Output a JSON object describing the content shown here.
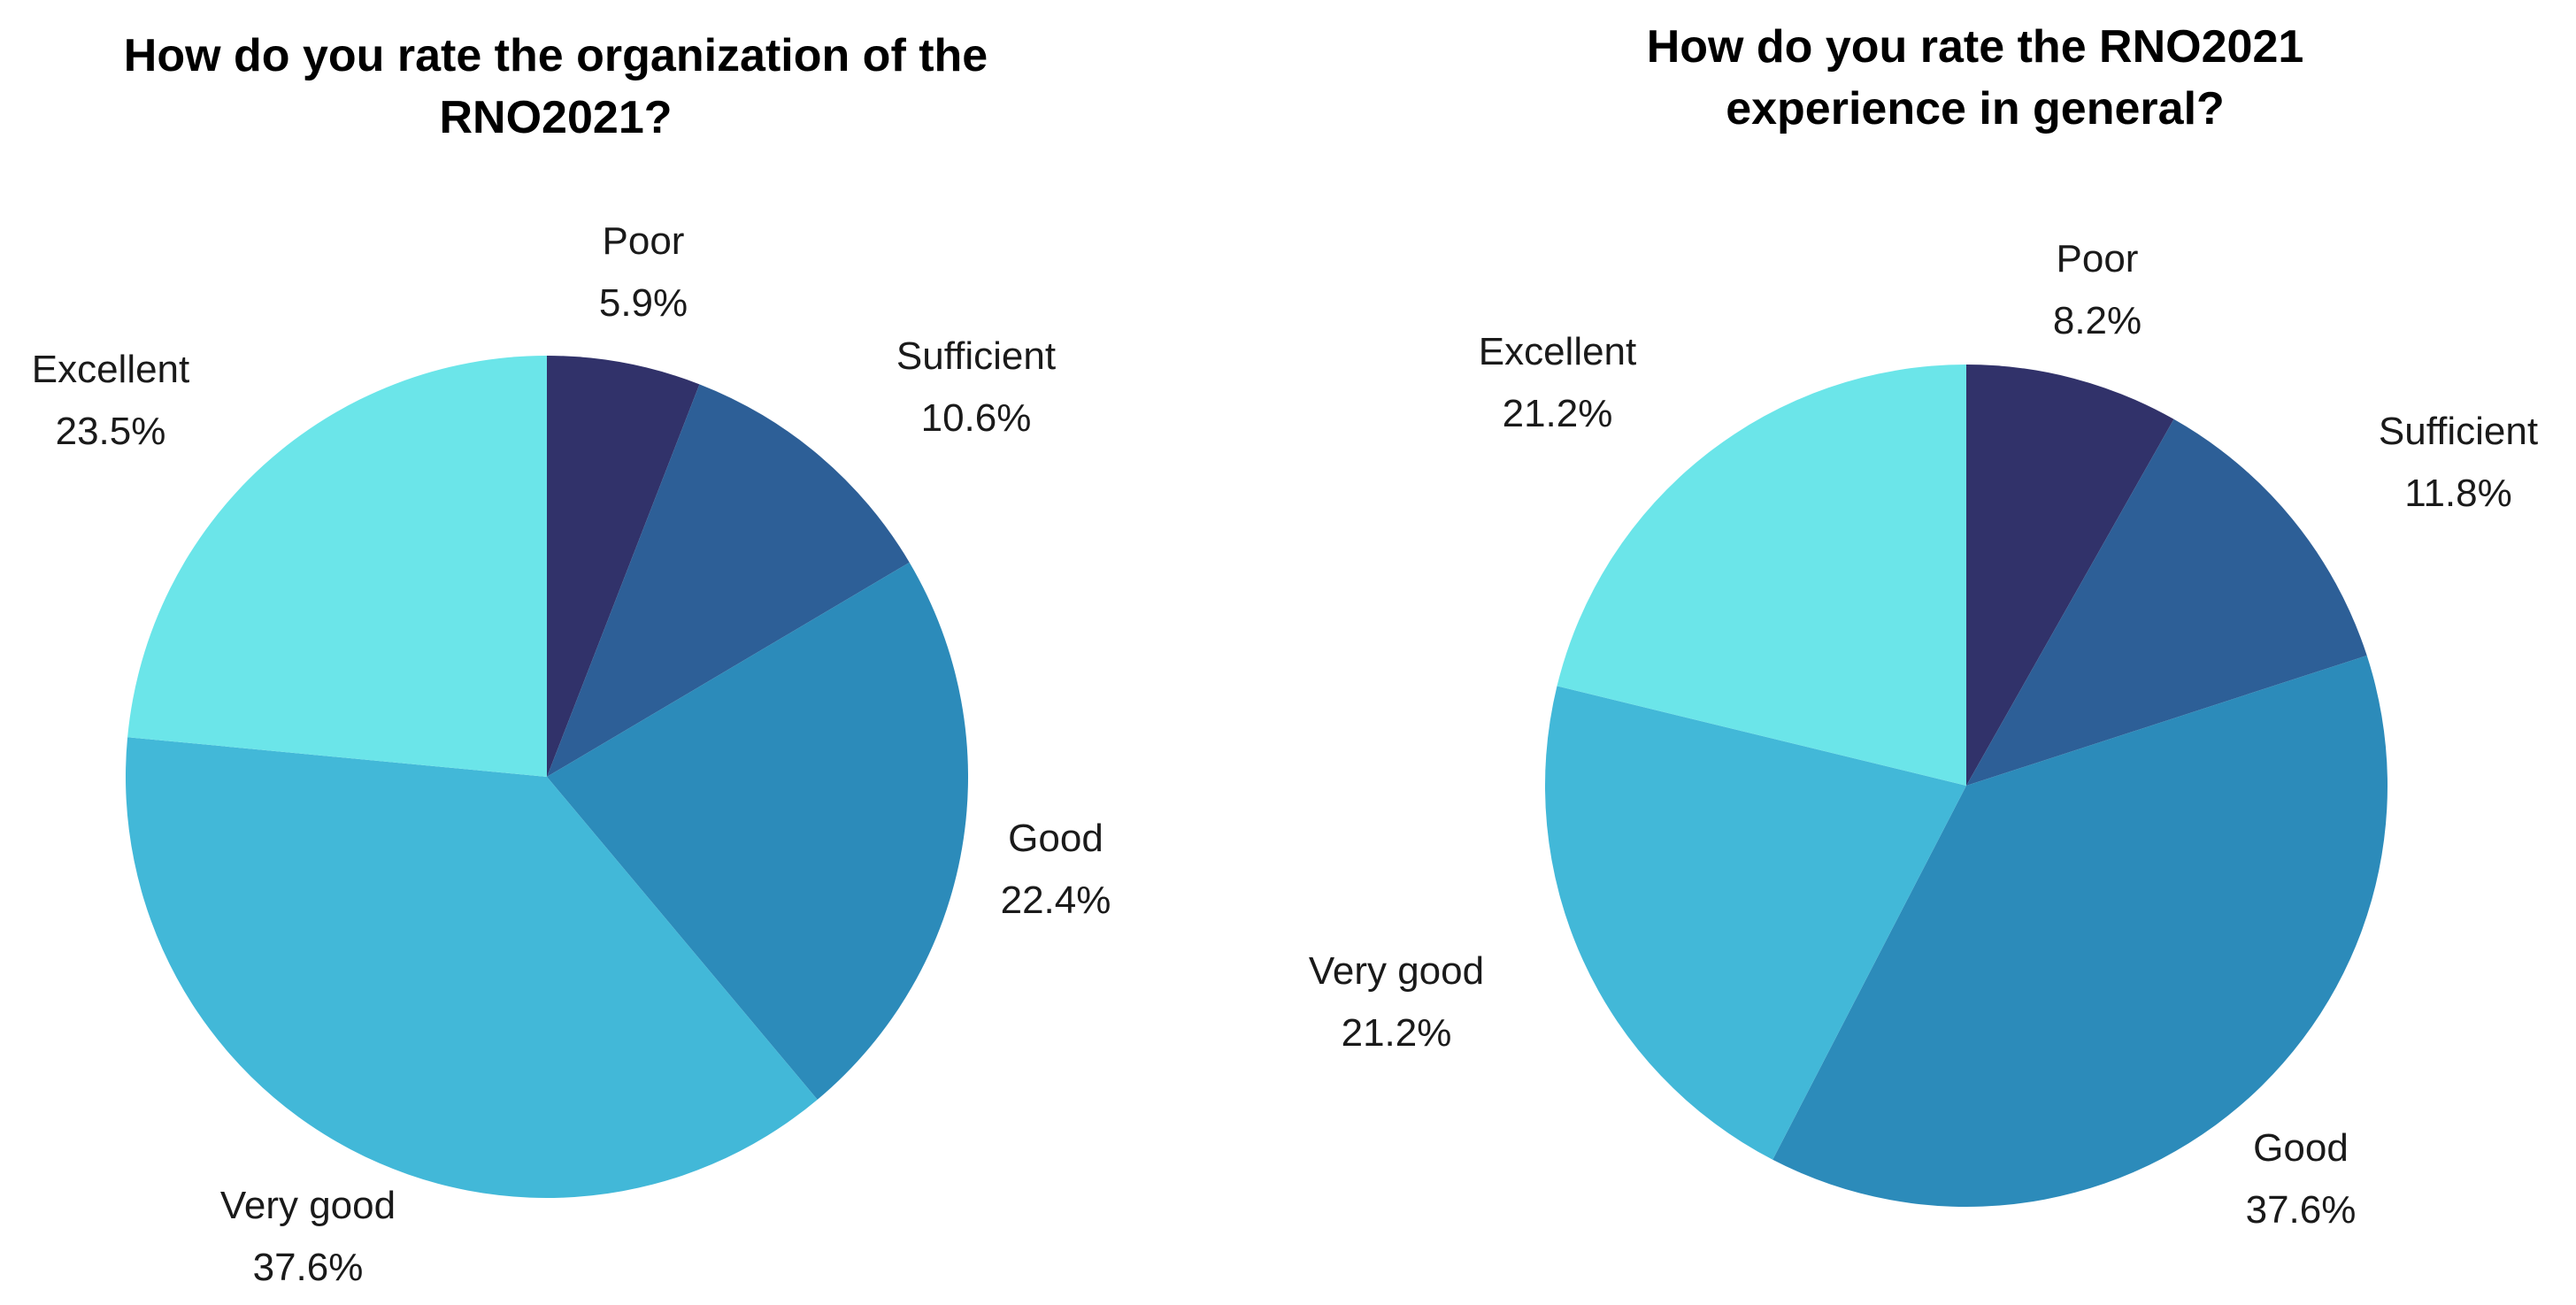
{
  "chart_data": [
    {
      "type": "pie",
      "title_lines": [
        "How do you rate the organization of the",
        "RNO2021?"
      ],
      "slices": [
        {
          "label": "Poor",
          "value_text": "5.9%",
          "value": 5.9,
          "color": "#31326a"
        },
        {
          "label": "Sufficient",
          "value_text": "10.6%",
          "value": 10.6,
          "color": "#2d5f97"
        },
        {
          "label": "Good",
          "value_text": "22.4%",
          "value": 22.4,
          "color": "#2c8bba"
        },
        {
          "label": "Very good",
          "value_text": "37.6%",
          "value": 37.6,
          "color": "#42b8d8"
        },
        {
          "label": "Excellent",
          "value_text": "23.5%",
          "value": 23.5,
          "color": "#6be5e9"
        }
      ]
    },
    {
      "type": "pie",
      "title_lines": [
        "How do you rate the RNO2021",
        "experience in general?"
      ],
      "slices": [
        {
          "label": "Poor",
          "value_text": "8.2%",
          "value": 8.2,
          "color": "#31326a"
        },
        {
          "label": "Sufficient",
          "value_text": "11.8%",
          "value": 11.8,
          "color": "#2d5f97"
        },
        {
          "label": "Good",
          "value_text": "37.6%",
          "value": 37.6,
          "color": "#2c8bba"
        },
        {
          "label": "Very good",
          "value_text": "21.2%",
          "value": 21.2,
          "color": "#42b8d8"
        },
        {
          "label": "Excellent",
          "value_text": "21.2%",
          "value": 21.2,
          "color": "#6be5e9"
        }
      ]
    }
  ]
}
